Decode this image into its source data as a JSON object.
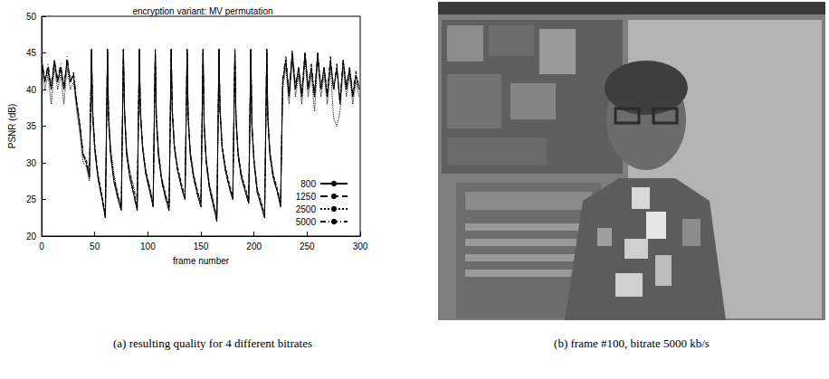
{
  "chart_data": {
    "type": "line",
    "title": "encryption variant: MV permutation",
    "x_label": "frame number",
    "y_label": "PSNR (dB)",
    "xlim": [
      0,
      300
    ],
    "xticks": [
      0,
      50,
      100,
      150,
      200,
      250,
      300
    ],
    "ylim": [
      20,
      50
    ],
    "yticks": [
      20,
      25,
      30,
      35,
      40,
      45,
      50
    ],
    "grid": false,
    "legend": "lower right",
    "x": [
      0,
      3,
      6,
      9,
      12,
      15,
      18,
      21,
      24,
      27,
      30,
      33,
      36,
      39,
      42,
      45,
      47,
      48,
      50,
      53,
      57,
      60,
      62,
      63,
      65,
      68,
      72,
      75,
      77,
      78,
      80,
      83,
      87,
      90,
      92,
      93,
      95,
      98,
      102,
      105,
      107,
      108,
      110,
      113,
      117,
      120,
      122,
      123,
      125,
      128,
      132,
      135,
      137,
      138,
      140,
      143,
      147,
      150,
      152,
      153,
      155,
      158,
      162,
      165,
      167,
      168,
      170,
      173,
      177,
      180,
      182,
      183,
      185,
      188,
      192,
      195,
      197,
      198,
      200,
      203,
      207,
      210,
      212,
      213,
      215,
      218,
      222,
      225,
      227,
      230,
      233,
      236,
      239,
      242,
      245,
      248,
      251,
      254,
      257,
      260,
      263,
      266,
      269,
      272,
      275,
      278,
      281,
      284,
      287,
      290,
      293,
      296,
      299
    ],
    "series": [
      {
        "name": "800",
        "color": "#000000",
        "line_style": "solid",
        "values": [
          44,
          41,
          43,
          40,
          44,
          41,
          43,
          40,
          44,
          41,
          42,
          38,
          35,
          31,
          30,
          28,
          45.5,
          37,
          32,
          28,
          25,
          22.5,
          45.5,
          36,
          31,
          27.5,
          25,
          23.5,
          45.5,
          37,
          31,
          28,
          25.5,
          23.5,
          45.5,
          37,
          32,
          28.5,
          26,
          24,
          45.5,
          36,
          31,
          27.5,
          25,
          23.5,
          45.5,
          37,
          32,
          29,
          26.5,
          25,
          45.5,
          36,
          31,
          28,
          25.5,
          24,
          45.5,
          35,
          30,
          26.5,
          24,
          22,
          45.5,
          37,
          32,
          29,
          26.5,
          25,
          45.5,
          36,
          31,
          28,
          26,
          24.5,
          45.5,
          35,
          30,
          26,
          24,
          22.5,
          45.5,
          36,
          31,
          28,
          26,
          24,
          41,
          44,
          39,
          45,
          40,
          43,
          39,
          45,
          40,
          43,
          39,
          45,
          40,
          43,
          39,
          44,
          40,
          43,
          38,
          44,
          40,
          43,
          39,
          42,
          40
        ]
      },
      {
        "name": "1250",
        "color": "#000000",
        "line_style": "dashed",
        "values": [
          44,
          41.5,
          42.5,
          40,
          43.5,
          41,
          43,
          40.5,
          44,
          41,
          42,
          38.5,
          35.5,
          31,
          30.5,
          28.5,
          45.5,
          37.5,
          32.5,
          28.5,
          25.5,
          23,
          45.5,
          36.5,
          31.5,
          28,
          25.5,
          24,
          45.5,
          37.5,
          31.5,
          28.5,
          26,
          24,
          45.5,
          37.5,
          32.5,
          29,
          26.5,
          24.5,
          45.5,
          36.5,
          31.5,
          28,
          25.5,
          24,
          45.5,
          37.5,
          32.5,
          29.5,
          27,
          25.5,
          45.5,
          36.5,
          31.5,
          28.5,
          26,
          24.5,
          45.5,
          35.5,
          30.5,
          27,
          24.5,
          22.5,
          45.5,
          37.5,
          32.5,
          29.5,
          27,
          25.5,
          45.5,
          36.5,
          31.5,
          28.5,
          26.5,
          25,
          45.5,
          35.5,
          30.5,
          26.5,
          24.5,
          23,
          45.5,
          36.5,
          31.5,
          28.5,
          26.5,
          24.5,
          41,
          44,
          39.5,
          45,
          40,
          43,
          39.5,
          45,
          40,
          43,
          39,
          44.5,
          40,
          43,
          39.5,
          44,
          40,
          43,
          38.5,
          44,
          40,
          42.5,
          39,
          42,
          40
        ]
      },
      {
        "name": "2500",
        "color": "#000000",
        "line_style": "dotted",
        "values": [
          43,
          40,
          42,
          38,
          43,
          40,
          42,
          38,
          43,
          40,
          41,
          37,
          34,
          30,
          29.5,
          27.5,
          45,
          36,
          31.5,
          28,
          25,
          23,
          45,
          37,
          32,
          28.5,
          25.5,
          24,
          45,
          37.5,
          32,
          29,
          26.5,
          25,
          45,
          37,
          32.5,
          29,
          26.5,
          24.5,
          45,
          36.5,
          31.5,
          28,
          25.5,
          24,
          45,
          37,
          32,
          29,
          26.5,
          25,
          45,
          36.5,
          31.5,
          28.5,
          26,
          24.5,
          45,
          35.5,
          30.5,
          27,
          24.5,
          22.5,
          45,
          37,
          32,
          29,
          26.5,
          25,
          45,
          36.5,
          31.5,
          28.5,
          26,
          24.5,
          45,
          35.5,
          30.5,
          26.5,
          24.5,
          23,
          45,
          36.5,
          31.5,
          28.5,
          26,
          24.5,
          40,
          43,
          38,
          44,
          39,
          42,
          38,
          44,
          39,
          42,
          37,
          44,
          39,
          42,
          38,
          43,
          36,
          35,
          37,
          43,
          39,
          42,
          38,
          41,
          39
        ]
      },
      {
        "name": "5000",
        "color": "#000000",
        "line_style": "dashdot",
        "values": [
          44.5,
          41,
          43.5,
          40.5,
          44,
          41.5,
          43.5,
          40,
          44.5,
          41,
          42.5,
          38,
          35,
          31.5,
          30,
          28,
          45.5,
          37,
          32,
          28,
          25,
          22.5,
          45.5,
          36,
          31,
          27.5,
          25,
          23.5,
          45.5,
          37,
          31.5,
          28,
          25.5,
          23.5,
          45.5,
          37,
          32,
          28.5,
          26,
          24,
          45.5,
          36,
          31,
          27.5,
          25,
          23.5,
          45.5,
          37,
          32,
          29,
          26.5,
          25,
          45.5,
          36,
          31,
          28,
          25.5,
          24,
          45.5,
          35,
          30,
          26.5,
          24,
          22,
          45.5,
          37,
          32,
          29,
          26.5,
          25,
          45.5,
          36,
          31,
          28,
          26,
          24.5,
          45.5,
          35,
          30,
          26,
          24,
          22.5,
          45.5,
          36,
          31,
          28,
          26,
          24,
          41.5,
          44.5,
          39,
          45.5,
          40.5,
          43,
          39,
          45,
          40.5,
          43.5,
          39.5,
          45,
          40,
          43,
          39,
          44.5,
          40,
          43.5,
          38,
          44,
          40.5,
          43,
          39.5,
          42.5,
          40
        ]
      }
    ]
  },
  "captions": [
    "(a) resulting quality for 4 different bitrates",
    "(b) frame #100, bitrate 5000 kb/s"
  ]
}
